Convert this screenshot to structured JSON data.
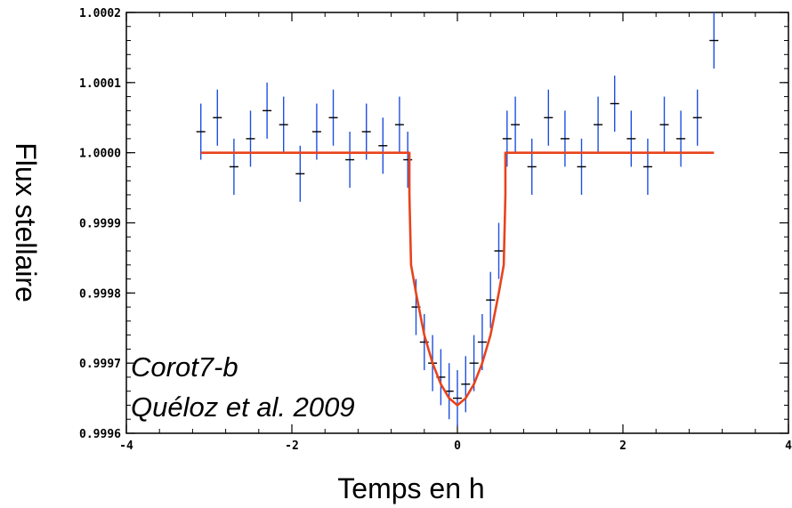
{
  "chart_data": {
    "type": "scatter",
    "title": "",
    "xlabel": "Temps en h",
    "ylabel": "Flux stellaire",
    "xlim": [
      -4,
      4
    ],
    "ylim": [
      0.9996,
      1.0002
    ],
    "x_ticks": [
      -4,
      -2,
      0,
      2,
      4
    ],
    "x_tick_labels": [
      "-4",
      "-2",
      "0",
      "2",
      "4"
    ],
    "y_ticks": [
      0.9996,
      0.9997,
      0.9998,
      0.9999,
      1.0,
      1.0001,
      1.0002
    ],
    "y_tick_labels": [
      "0.9996",
      "0.9997",
      "0.9998",
      "0.9999",
      "1.0000",
      "1.0001",
      "1.0002"
    ],
    "annotations": [
      "Corot7-b",
      "Quéloz et al. 2009"
    ],
    "grid": false,
    "legend": "none",
    "series": [
      {
        "kind": "points_with_error_bars",
        "color": "#1f4fe0",
        "marker_color": "#000000",
        "x": [
          -3.1,
          -2.9,
          -2.7,
          -2.5,
          -2.3,
          -2.1,
          -1.9,
          -1.7,
          -1.5,
          -1.3,
          -1.1,
          -0.9,
          -0.7,
          -0.6,
          -0.5,
          -0.4,
          -0.3,
          -0.2,
          -0.1,
          0.0,
          0.1,
          0.2,
          0.3,
          0.4,
          0.5,
          0.6,
          0.7,
          0.9,
          1.1,
          1.3,
          1.5,
          1.7,
          1.9,
          2.1,
          2.3,
          2.5,
          2.7,
          2.9,
          3.1
        ],
        "y": [
          1.00003,
          1.00005,
          0.99998,
          1.00002,
          1.00006,
          1.00004,
          0.99997,
          1.00003,
          1.00005,
          0.99999,
          1.00003,
          1.00001,
          1.00004,
          0.99999,
          0.99978,
          0.99973,
          0.9997,
          0.99968,
          0.99966,
          0.99965,
          0.99967,
          0.9997,
          0.99973,
          0.99979,
          0.99986,
          1.00002,
          1.00004,
          0.99998,
          1.00005,
          1.00002,
          0.99998,
          1.00004,
          1.00007,
          1.00002,
          0.99998,
          1.00004,
          1.00002,
          1.00005,
          1.00016
        ],
        "error": 4e-05
      },
      {
        "kind": "line",
        "color": "#e8431c",
        "x": [
          -3.1,
          -0.58,
          -0.58,
          -0.56,
          -0.5,
          -0.4,
          -0.3,
          -0.2,
          -0.1,
          0.0,
          0.1,
          0.2,
          0.3,
          0.4,
          0.5,
          0.56,
          0.58,
          0.58,
          3.1
        ],
        "y": [
          1.0,
          1.0,
          0.99994,
          0.99984,
          0.9998,
          0.99974,
          0.9997,
          0.99967,
          0.99965,
          0.99964,
          0.99965,
          0.99967,
          0.9997,
          0.99974,
          0.9998,
          0.99984,
          0.99994,
          1.0,
          1.0
        ]
      }
    ]
  }
}
